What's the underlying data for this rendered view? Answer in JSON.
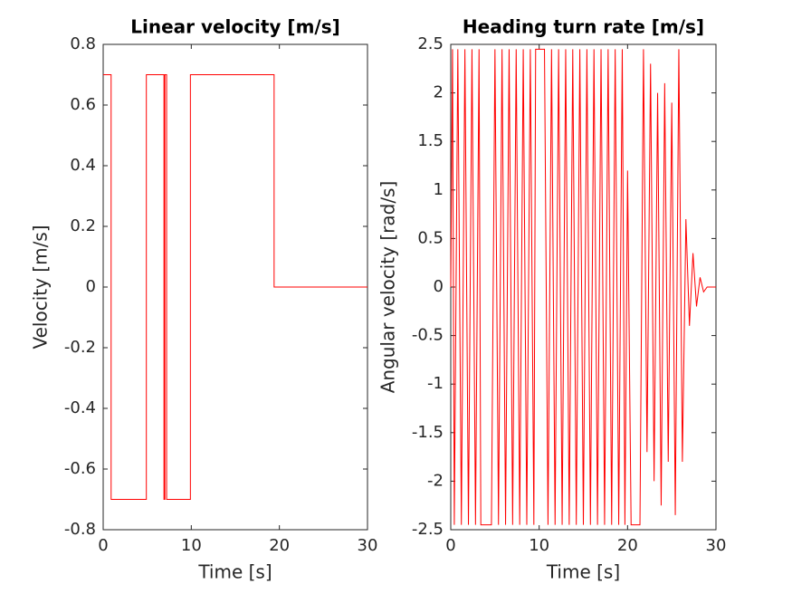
{
  "chart_data": [
    {
      "type": "line",
      "title": "Linear velocity [m/s]",
      "xlabel": "Time [s]",
      "ylabel": "Velocity [m/s]",
      "color": "#ff0000",
      "x": [
        0,
        0.9,
        0.9,
        4.9,
        4.9,
        6.9,
        6.9,
        7.0,
        7.0,
        7.2,
        7.2,
        9.9,
        9.9,
        19.4,
        19.4,
        30
      ],
      "values": [
        0.7,
        0.7,
        -0.7,
        -0.7,
        0.7,
        0.7,
        -0.7,
        -0.7,
        0.7,
        0.7,
        -0.7,
        -0.7,
        0.7,
        0.7,
        0,
        0
      ],
      "xlim": [
        0,
        30
      ],
      "xticks": [
        0,
        10,
        20,
        30
      ],
      "ylim": [
        -0.8,
        0.8
      ],
      "yticks": [
        -0.8,
        -0.6,
        -0.4,
        -0.2,
        0,
        0.2,
        0.4,
        0.6,
        0.8
      ]
    },
    {
      "type": "line",
      "title": "Heading turn rate [m/s]",
      "xlabel": "Time [s]",
      "ylabel": "Angular velocity [rad/s]",
      "color": "#ff0000",
      "x": [
        0,
        0.2,
        0.4,
        0.8,
        1.2,
        1.6,
        2.0,
        2.4,
        2.8,
        3.2,
        3.4,
        4.6,
        5.0,
        5.4,
        5.8,
        6.2,
        6.6,
        7.0,
        7.4,
        7.8,
        8.2,
        8.6,
        9.0,
        9.4,
        9.6,
        10.6,
        11.0,
        11.4,
        11.8,
        12.2,
        12.6,
        13.0,
        13.4,
        13.8,
        14.2,
        14.6,
        15.0,
        15.4,
        15.8,
        16.2,
        16.6,
        17.0,
        17.4,
        17.8,
        18.2,
        18.6,
        19.0,
        19.4,
        19.7,
        20.0,
        20.4,
        21.4,
        21.8,
        22.2,
        22.6,
        23.0,
        23.4,
        23.8,
        24.2,
        24.6,
        25.0,
        25.4,
        25.8,
        26.2,
        26.6,
        27.0,
        27.4,
        27.8,
        28.2,
        28.6,
        29.0,
        30
      ],
      "values": [
        0,
        2.45,
        -2.45,
        2.45,
        -2.45,
        2.45,
        -2.45,
        2.45,
        -2.45,
        2.45,
        -2.45,
        -2.45,
        2.45,
        -2.45,
        2.45,
        -2.45,
        2.45,
        -2.45,
        2.45,
        -2.45,
        2.45,
        -2.45,
        2.45,
        -2.45,
        2.45,
        2.45,
        -2.45,
        2.45,
        -2.45,
        2.45,
        -2.45,
        2.45,
        -2.45,
        2.45,
        -2.45,
        2.45,
        -2.45,
        2.45,
        -2.45,
        2.45,
        -2.45,
        2.45,
        -2.45,
        2.45,
        -2.45,
        2.45,
        -2.45,
        2.45,
        -2.45,
        1.2,
        -2.45,
        -2.45,
        2.45,
        -1.7,
        2.3,
        -2.0,
        2.0,
        -2.25,
        2.1,
        -1.8,
        1.9,
        -2.35,
        2.45,
        -1.8,
        0.7,
        -0.4,
        0.35,
        -0.2,
        0.1,
        -0.05,
        0,
        0
      ],
      "xlim": [
        0,
        30
      ],
      "xticks": [
        0,
        10,
        20,
        30
      ],
      "ylim": [
        -2.5,
        2.5
      ],
      "yticks": [
        -2.5,
        -2,
        -1.5,
        -1,
        -0.5,
        0,
        0.5,
        1,
        1.5,
        2,
        2.5
      ]
    }
  ]
}
